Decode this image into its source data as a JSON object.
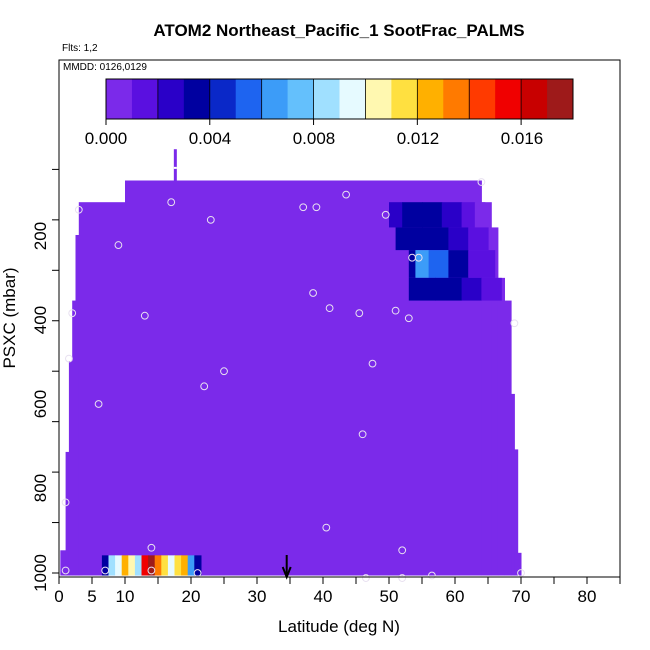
{
  "chart_data": {
    "type": "heatmap",
    "title": "ATOM2 Northeast_Pacific_1 SootFrac_PALMS",
    "annotations": [
      "Flts: 1,2",
      "MMDD: 0126,0129"
    ],
    "xlabel": "Latitude (deg N)",
    "ylabel": "PSXC (mbar)",
    "xlim": [
      0,
      85
    ],
    "ylim": [
      1000,
      0
    ],
    "x_ticks": [
      "0",
      "5",
      "10",
      "20",
      "30",
      "40",
      "50",
      "60",
      "70",
      "80"
    ],
    "y_ticks": [
      "200",
      "400",
      "600",
      "800",
      "1000"
    ],
    "colorbar": {
      "range": [
        0,
        0.018
      ],
      "tick_labels": [
        "0.000",
        "0.004",
        "0.008",
        "0.012",
        "0.016"
      ],
      "colors": [
        "#7B2AEA",
        "#5A10E0",
        "#2A00C8",
        "#0000A0",
        "#0A28C8",
        "#1E64F0",
        "#3C9CF8",
        "#64C0FC",
        "#A0E0FF",
        "#E6FAFF",
        "#FFF8B0",
        "#FFE040",
        "#FFB000",
        "#FF7A00",
        "#FF3A00",
        "#F00000",
        "#C80000",
        "#9E1A1A"
      ],
      "steps": 18
    },
    "background_value": 0.0,
    "cells": [
      {
        "lat": [
          6.5,
          7.5
        ],
        "p": [
          965,
          1005
        ],
        "value": 0.003
      },
      {
        "lat": [
          7.5,
          8.5
        ],
        "p": [
          965,
          1005
        ],
        "value": 0.008
      },
      {
        "lat": [
          8.5,
          9.5
        ],
        "p": [
          965,
          1005
        ],
        "value": 0.009
      },
      {
        "lat": [
          9.5,
          10.5
        ],
        "p": [
          965,
          1005
        ],
        "value": 0.012
      },
      {
        "lat": [
          10.5,
          11.5
        ],
        "p": [
          965,
          1005
        ],
        "value": 0.01
      },
      {
        "lat": [
          11.5,
          12.5
        ],
        "p": [
          965,
          1005
        ],
        "value": 0.008
      },
      {
        "lat": [
          12.5,
          13.5
        ],
        "p": [
          965,
          1005
        ],
        "value": 0.015
      },
      {
        "lat": [
          13.5,
          14.5
        ],
        "p": [
          965,
          1005
        ],
        "value": 0.017
      },
      {
        "lat": [
          14.5,
          15.5
        ],
        "p": [
          965,
          1005
        ],
        "value": 0.013
      },
      {
        "lat": [
          15.5,
          16.5
        ],
        "p": [
          965,
          1005
        ],
        "value": 0.011
      },
      {
        "lat": [
          16.5,
          17.5
        ],
        "p": [
          965,
          1005
        ],
        "value": 0.009
      },
      {
        "lat": [
          17.5,
          18.5
        ],
        "p": [
          965,
          1005
        ],
        "value": 0.011
      },
      {
        "lat": [
          18.5,
          19.5
        ],
        "p": [
          965,
          1005
        ],
        "value": 0.012
      },
      {
        "lat": [
          19.5,
          20.5
        ],
        "p": [
          965,
          1005
        ],
        "value": 0.006
      },
      {
        "lat": [
          20.5,
          21.5
        ],
        "p": [
          965,
          1005
        ],
        "value": 0.003
      },
      {
        "lat": [
          50,
          52
        ],
        "p": [
          265,
          315
        ],
        "value": 0.002
      },
      {
        "lat": [
          52,
          55
        ],
        "p": [
          265,
          315
        ],
        "value": 0.003
      },
      {
        "lat": [
          55,
          58
        ],
        "p": [
          265,
          315
        ],
        "value": 0.0035
      },
      {
        "lat": [
          58,
          61
        ],
        "p": [
          265,
          315
        ],
        "value": 0.0025
      },
      {
        "lat": [
          61,
          63
        ],
        "p": [
          265,
          315
        ],
        "value": 0.0015
      },
      {
        "lat": [
          63,
          64.5
        ],
        "p": [
          265,
          315
        ],
        "value": 0.0008
      },
      {
        "lat": [
          51,
          55
        ],
        "p": [
          315,
          360
        ],
        "value": 0.003
      },
      {
        "lat": [
          55,
          59
        ],
        "p": [
          315,
          360
        ],
        "value": 0.0033
      },
      {
        "lat": [
          59,
          62
        ],
        "p": [
          315,
          360
        ],
        "value": 0.0025
      },
      {
        "lat": [
          62,
          65
        ],
        "p": [
          315,
          360
        ],
        "value": 0.0012
      },
      {
        "lat": [
          53,
          54
        ],
        "p": [
          360,
          415
        ],
        "value": 0.0035
      },
      {
        "lat": [
          54,
          56
        ],
        "p": [
          360,
          415
        ],
        "value": 0.006
      },
      {
        "lat": [
          56,
          59
        ],
        "p": [
          360,
          415
        ],
        "value": 0.005
      },
      {
        "lat": [
          59,
          62
        ],
        "p": [
          360,
          415
        ],
        "value": 0.0035
      },
      {
        "lat": [
          62,
          66
        ],
        "p": [
          360,
          415
        ],
        "value": 0.0015
      },
      {
        "lat": [
          53,
          57
        ],
        "p": [
          415,
          460
        ],
        "value": 0.003
      },
      {
        "lat": [
          57,
          61
        ],
        "p": [
          415,
          460
        ],
        "value": 0.0032
      },
      {
        "lat": [
          61,
          64
        ],
        "p": [
          415,
          460
        ],
        "value": 0.0022
      },
      {
        "lat": [
          64,
          67
        ],
        "p": [
          415,
          460
        ],
        "value": 0.001
      }
    ],
    "points": [
      [
        1,
        995
      ],
      [
        1,
        860
      ],
      [
        1.5,
        575
      ],
      [
        2,
        485
      ],
      [
        3,
        280
      ],
      [
        9,
        350
      ],
      [
        6,
        665
      ],
      [
        7,
        995
      ],
      [
        13,
        490
      ],
      [
        14,
        950
      ],
      [
        14,
        995
      ],
      [
        17,
        265
      ],
      [
        21,
        1000
      ],
      [
        22,
        630
      ],
      [
        23,
        300
      ],
      [
        25,
        600
      ],
      [
        37,
        275
      ],
      [
        38.5,
        445
      ],
      [
        39,
        275
      ],
      [
        40.5,
        910
      ],
      [
        41,
        475
      ],
      [
        43.5,
        250
      ],
      [
        45.5,
        485
      ],
      [
        46,
        725
      ],
      [
        46.5,
        1010
      ],
      [
        47.5,
        585
      ],
      [
        49.5,
        290
      ],
      [
        51,
        480
      ],
      [
        52,
        955
      ],
      [
        52,
        1010
      ],
      [
        53,
        495
      ],
      [
        53.5,
        375
      ],
      [
        54.5,
        375
      ],
      [
        56.5,
        1005
      ],
      [
        64,
        225
      ],
      [
        69,
        505
      ],
      [
        70,
        1000
      ]
    ],
    "marker": {
      "lat": 34.5,
      "direction": "down"
    }
  }
}
